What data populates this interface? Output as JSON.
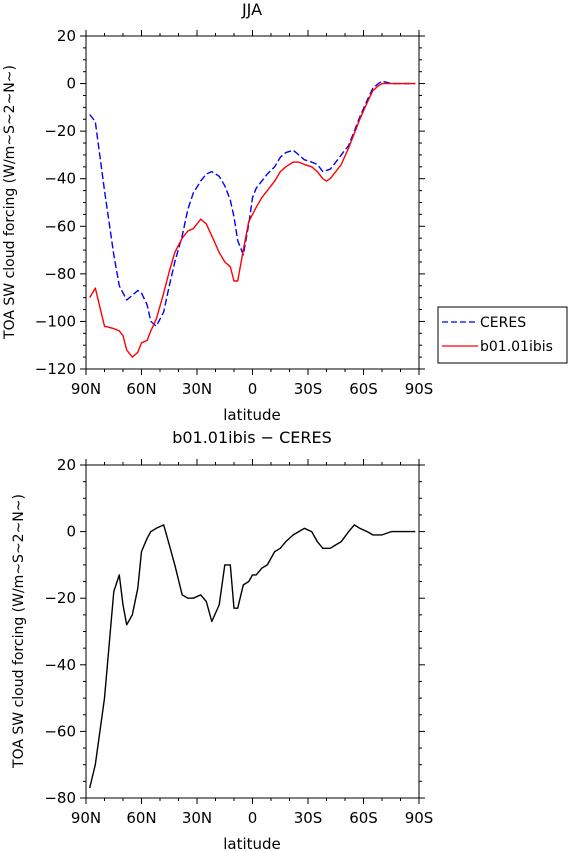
{
  "chart_data": [
    {
      "type": "line",
      "title": "JJA",
      "xlabel": "latitude",
      "ylabel": "TOA SW cloud forcing (W/m~S~2~N~)",
      "xlim": [
        90,
        -90
      ],
      "ylim": [
        -120,
        20
      ],
      "xticks": [
        90,
        60,
        30,
        0,
        -30,
        -60,
        -90
      ],
      "xtick_labels": [
        "90N",
        "60N",
        "30N",
        "0",
        "30S",
        "60S",
        "90S"
      ],
      "yticks": [
        20,
        0,
        -20,
        -40,
        -60,
        -80,
        -100,
        -120
      ],
      "ytick_labels": [
        "20",
        "0",
        "−20",
        "−40",
        "−60",
        "−80",
        "−100",
        "−120"
      ],
      "grid": false,
      "legend_position": "right",
      "series": [
        {
          "name": "CERES",
          "color": "#0000ff",
          "dash": "dashed",
          "x": [
            88,
            85,
            80,
            75,
            72,
            68,
            65,
            62,
            60,
            57,
            55,
            52,
            48,
            45,
            42,
            38,
            35,
            32,
            28,
            25,
            22,
            18,
            15,
            12,
            10,
            8,
            5,
            2,
            0,
            -2,
            -5,
            -8,
            -12,
            -15,
            -18,
            -22,
            -25,
            -28,
            -32,
            -35,
            -38,
            -42,
            -45,
            -48,
            -52,
            -55,
            -58,
            -62,
            -65,
            -68,
            -70,
            -75,
            -80,
            -85,
            -88
          ],
          "y": [
            -13,
            -16,
            -45,
            -72,
            -85,
            -91,
            -89,
            -87,
            -88,
            -93,
            -100,
            -102,
            -96,
            -85,
            -75,
            -64,
            -53,
            -46,
            -41,
            -38,
            -37,
            -39,
            -43,
            -49,
            -56,
            -66,
            -72,
            -59,
            -48,
            -44,
            -41,
            -38,
            -35,
            -31,
            -29,
            -28,
            -30,
            -32,
            -33,
            -34,
            -37,
            -36,
            -33,
            -30,
            -26,
            -20,
            -14,
            -7,
            -2,
            0,
            1,
            0,
            0,
            0,
            0
          ]
        },
        {
          "name": "b01.01ibis",
          "color": "#ff0000",
          "dash": "solid",
          "x": [
            88,
            85,
            80,
            75,
            72,
            70,
            68,
            65,
            62,
            60,
            57,
            55,
            52,
            48,
            45,
            42,
            38,
            35,
            32,
            30,
            28,
            25,
            22,
            18,
            15,
            12,
            10,
            8,
            5,
            2,
            0,
            -2,
            -5,
            -8,
            -12,
            -15,
            -18,
            -22,
            -25,
            -28,
            -32,
            -35,
            -38,
            -40,
            -42,
            -45,
            -48,
            -52,
            -55,
            -58,
            -62,
            -65,
            -68,
            -70,
            -75,
            -80,
            -85,
            -88
          ],
          "y": [
            -90,
            -86,
            -102,
            -103,
            -104,
            -106,
            -112,
            -115,
            -113,
            -109,
            -108,
            -104,
            -99,
            -88,
            -79,
            -71,
            -65,
            -62,
            -61,
            -59,
            -57,
            -59,
            -64,
            -71,
            -75,
            -77,
            -83,
            -83,
            -70,
            -58,
            -55,
            -52,
            -48,
            -45,
            -41,
            -37,
            -35,
            -33,
            -33,
            -34,
            -35,
            -37,
            -40,
            -41,
            -40,
            -37,
            -34,
            -27,
            -21,
            -15,
            -8,
            -3,
            -1,
            0,
            0,
            0,
            0,
            0
          ]
        }
      ]
    },
    {
      "type": "line",
      "title": "b01.01ibis − CERES",
      "xlabel": "latitude",
      "ylabel": "TOA SW cloud forcing (W/m~S~2~N~)",
      "xlim": [
        90,
        -90
      ],
      "ylim": [
        -80,
        20
      ],
      "xticks": [
        90,
        60,
        30,
        0,
        -30,
        -60,
        -90
      ],
      "xtick_labels": [
        "90N",
        "60N",
        "30N",
        "0",
        "30S",
        "60S",
        "90S"
      ],
      "yticks": [
        20,
        0,
        -20,
        -40,
        -60,
        -80
      ],
      "ytick_labels": [
        "20",
        "0",
        "−20",
        "−40",
        "−60",
        "−80"
      ],
      "grid": false,
      "series": [
        {
          "color": "#000000",
          "x": [
            88,
            85,
            80,
            75,
            72,
            70,
            68,
            65,
            62,
            60,
            57,
            55,
            52,
            48,
            45,
            42,
            38,
            35,
            32,
            28,
            25,
            22,
            18,
            15,
            12,
            10,
            8,
            5,
            2,
            0,
            -2,
            -5,
            -8,
            -12,
            -15,
            -18,
            -22,
            -25,
            -28,
            -32,
            -35,
            -38,
            -42,
            -45,
            -48,
            -52,
            -55,
            -58,
            -62,
            -65,
            -68,
            -70,
            -75,
            -80,
            -85,
            -88
          ],
          "y": [
            -77,
            -70,
            -50,
            -18,
            -13,
            -22,
            -28,
            -25,
            -17,
            -6,
            -2,
            0,
            1,
            2,
            -4,
            -10,
            -19,
            -20,
            -20,
            -19,
            -21,
            -27,
            -22,
            -10,
            -10,
            -23,
            -23,
            -16,
            -15,
            -13,
            -13,
            -11,
            -10,
            -6,
            -5,
            -3,
            -1,
            0,
            1,
            0,
            -3,
            -5,
            -5,
            -4,
            -3,
            0,
            2,
            1,
            0,
            -1,
            -1,
            -1,
            0,
            0,
            0,
            0
          ]
        }
      ]
    }
  ]
}
